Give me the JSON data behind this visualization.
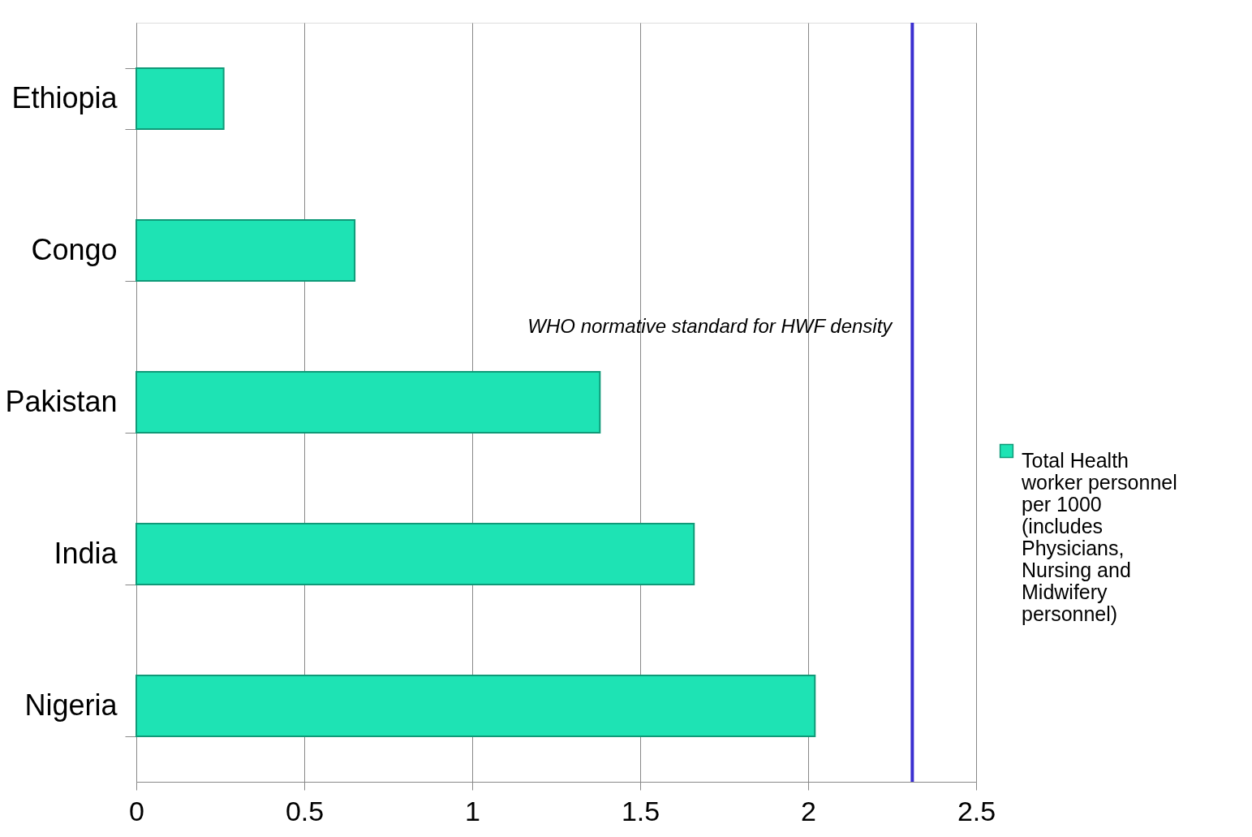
{
  "chart_data": {
    "type": "bar",
    "orientation": "horizontal",
    "categories": [
      "Ethiopia",
      "Congo",
      "Pakistan",
      "India",
      "Nigeria"
    ],
    "series": [
      {
        "name": "Total Health worker personnel per 1000 (includes Physicians, Nursing and Midwifery personnel)",
        "color": "#1ee3b4",
        "values": [
          0.26,
          0.65,
          1.38,
          1.66,
          2.02
        ]
      }
    ],
    "xlim": [
      0,
      2.5
    ],
    "xticks": [
      0,
      0.5,
      1,
      1.5,
      2,
      2.5
    ],
    "ref_lines": [
      {
        "axis": "x",
        "value": 2.31,
        "label": "WHO normative standard  for HWF density",
        "color": "#3b2fd0"
      }
    ],
    "grid": "x",
    "legend": "right"
  }
}
